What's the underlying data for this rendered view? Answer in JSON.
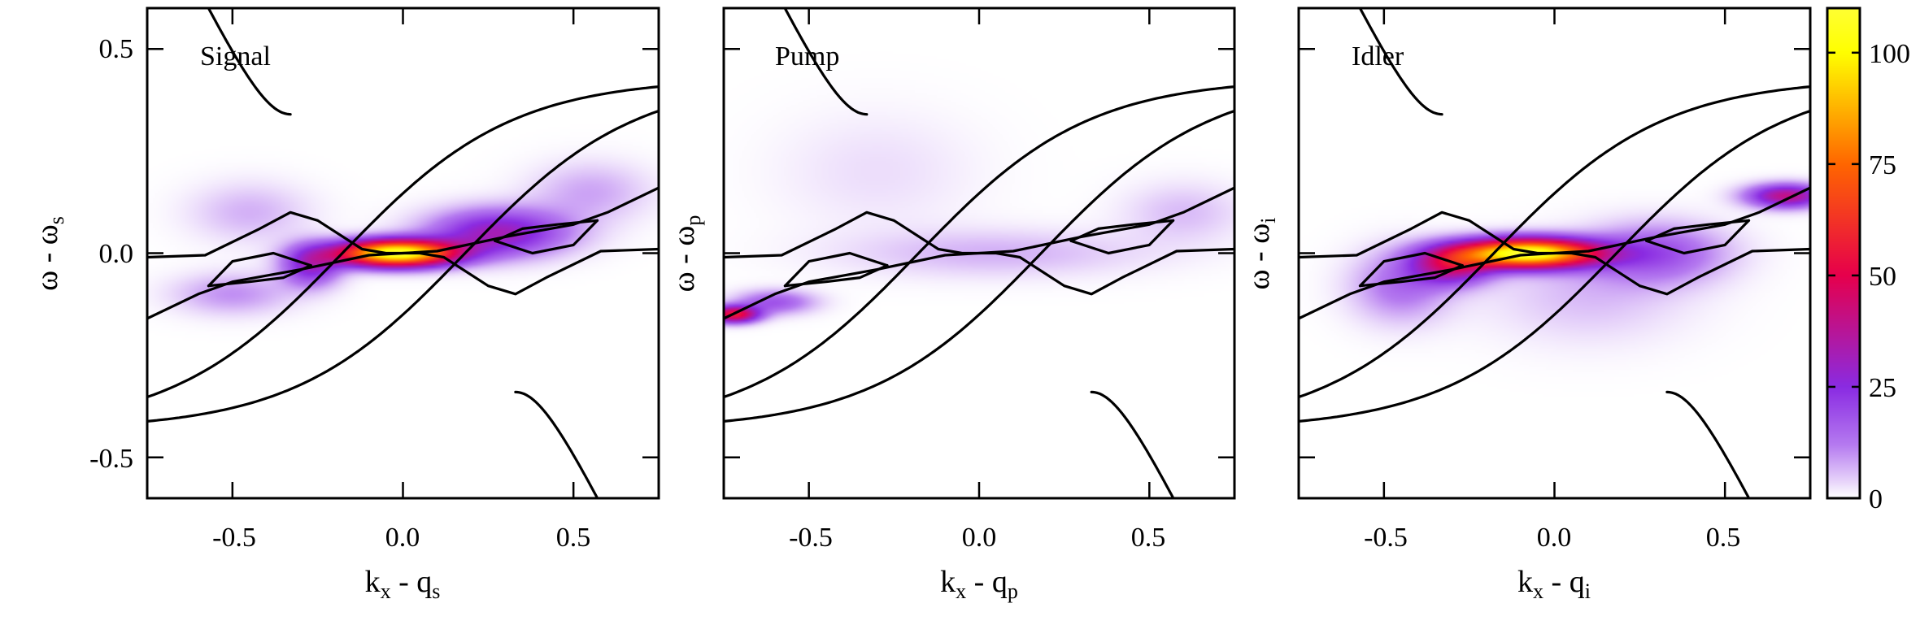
{
  "figure": {
    "colorscale": [
      {
        "value": 0,
        "color": "#ffffff"
      },
      {
        "value": 12,
        "color": "#b57af0"
      },
      {
        "value": 25,
        "color": "#8a2be2"
      },
      {
        "value": 50,
        "color": "#e6004c"
      },
      {
        "value": 75,
        "color": "#ff6600"
      },
      {
        "value": 100,
        "color": "#ffff00"
      },
      {
        "value": 110,
        "color": "#ffff33"
      }
    ]
  },
  "chart_data": [
    {
      "type": "heatmap",
      "title": "Signal",
      "xlabel_main": "k",
      "xlabel_sub1": "x",
      "xlabel_mid": " - q",
      "xlabel_sub2": "s",
      "ylabel_main": "ω - ω",
      "ylabel_sub": "s",
      "xlim": [
        -0.75,
        0.75
      ],
      "ylim": [
        -0.6,
        0.6
      ],
      "xticks": [
        -0.5,
        0.0,
        0.5
      ],
      "xtick_labels": [
        "-0.5",
        "0.0",
        "0.5"
      ],
      "yticks": [
        -0.5,
        0.0,
        0.5
      ],
      "ytick_labels": [
        "-0.5",
        "0.0",
        "0.5"
      ],
      "show_ytick_labels": true,
      "intensity_peaks": [
        {
          "k": -0.02,
          "w": 0.0,
          "sk": 0.12,
          "sw": 0.022,
          "amp": 110
        },
        {
          "k": 0.28,
          "w": 0.05,
          "sk": 0.14,
          "sw": 0.04,
          "amp": 32
        },
        {
          "k": -0.27,
          "w": -0.03,
          "sk": 0.06,
          "sw": 0.035,
          "amp": 28
        },
        {
          "k": -0.5,
          "w": -0.1,
          "sk": 0.12,
          "sw": 0.035,
          "amp": 10
        },
        {
          "k": -0.45,
          "w": 0.1,
          "sk": 0.12,
          "sw": 0.05,
          "amp": 7
        },
        {
          "k": 0.55,
          "w": 0.15,
          "sk": 0.12,
          "sw": 0.05,
          "amp": 8
        }
      ]
    },
    {
      "type": "heatmap",
      "title": "Pump",
      "xlabel_main": "k",
      "xlabel_sub1": "x",
      "xlabel_mid": " - q",
      "xlabel_sub2": "p",
      "ylabel_main": "ω - ω",
      "ylabel_sub": "p",
      "xlim": [
        -0.75,
        0.75
      ],
      "ylim": [
        -0.6,
        0.6
      ],
      "xticks": [
        -0.5,
        0.0,
        0.5
      ],
      "xtick_labels": [
        "-0.5",
        "0.0",
        "0.5"
      ],
      "yticks": [
        -0.5,
        0.0,
        0.5
      ],
      "ytick_labels": [
        "-0.5",
        "0.0",
        "0.5"
      ],
      "show_ytick_labels": false,
      "intensity_peaks": [
        {
          "k": -0.72,
          "w": -0.15,
          "sk": 0.05,
          "sw": 0.014,
          "amp": 55
        },
        {
          "k": -0.6,
          "w": -0.12,
          "sk": 0.08,
          "sw": 0.02,
          "amp": 18
        },
        {
          "k": 0.05,
          "w": 0.0,
          "sk": 0.3,
          "sw": 0.04,
          "amp": 7
        },
        {
          "k": 0.6,
          "w": 0.1,
          "sk": 0.12,
          "sw": 0.05,
          "amp": 6
        },
        {
          "k": -0.3,
          "w": 0.2,
          "sk": 0.2,
          "sw": 0.1,
          "amp": 3
        }
      ]
    },
    {
      "type": "heatmap",
      "title": "Idler",
      "xlabel_main": "k",
      "xlabel_sub1": "x",
      "xlabel_mid": " - q",
      "xlabel_sub2": "i",
      "ylabel_main": "ω - ω",
      "ylabel_sub": "i",
      "xlim": [
        -0.75,
        0.75
      ],
      "ylim": [
        -0.6,
        0.6
      ],
      "xticks": [
        -0.5,
        0.0,
        0.5
      ],
      "xtick_labels": [
        "-0.5",
        "0.0",
        "0.5"
      ],
      "yticks": [
        -0.5,
        0.0,
        0.5
      ],
      "ytick_labels": [
        "-0.5",
        "0.0",
        "0.5"
      ],
      "show_ytick_labels": false,
      "intensity_peaks": [
        {
          "k": -0.08,
          "w": 0.0,
          "sk": 0.14,
          "sw": 0.024,
          "amp": 110
        },
        {
          "k": -0.3,
          "w": -0.03,
          "sk": 0.08,
          "sw": 0.032,
          "amp": 38
        },
        {
          "k": 0.68,
          "w": 0.14,
          "sk": 0.08,
          "sw": 0.02,
          "amp": 40
        },
        {
          "k": 0.3,
          "w": 0.0,
          "sk": 0.14,
          "sw": 0.05,
          "amp": 18
        },
        {
          "k": -0.45,
          "w": -0.08,
          "sk": 0.1,
          "sw": 0.06,
          "amp": 14
        },
        {
          "k": 0.1,
          "w": -0.1,
          "sk": 0.2,
          "sw": 0.08,
          "amp": 6
        }
      ]
    }
  ],
  "colorbar": {
    "range": [
      0,
      110
    ],
    "ticks": [
      0,
      25,
      50,
      75,
      100
    ],
    "tick_labels": [
      "0",
      "25",
      "50",
      "75",
      "100"
    ]
  }
}
